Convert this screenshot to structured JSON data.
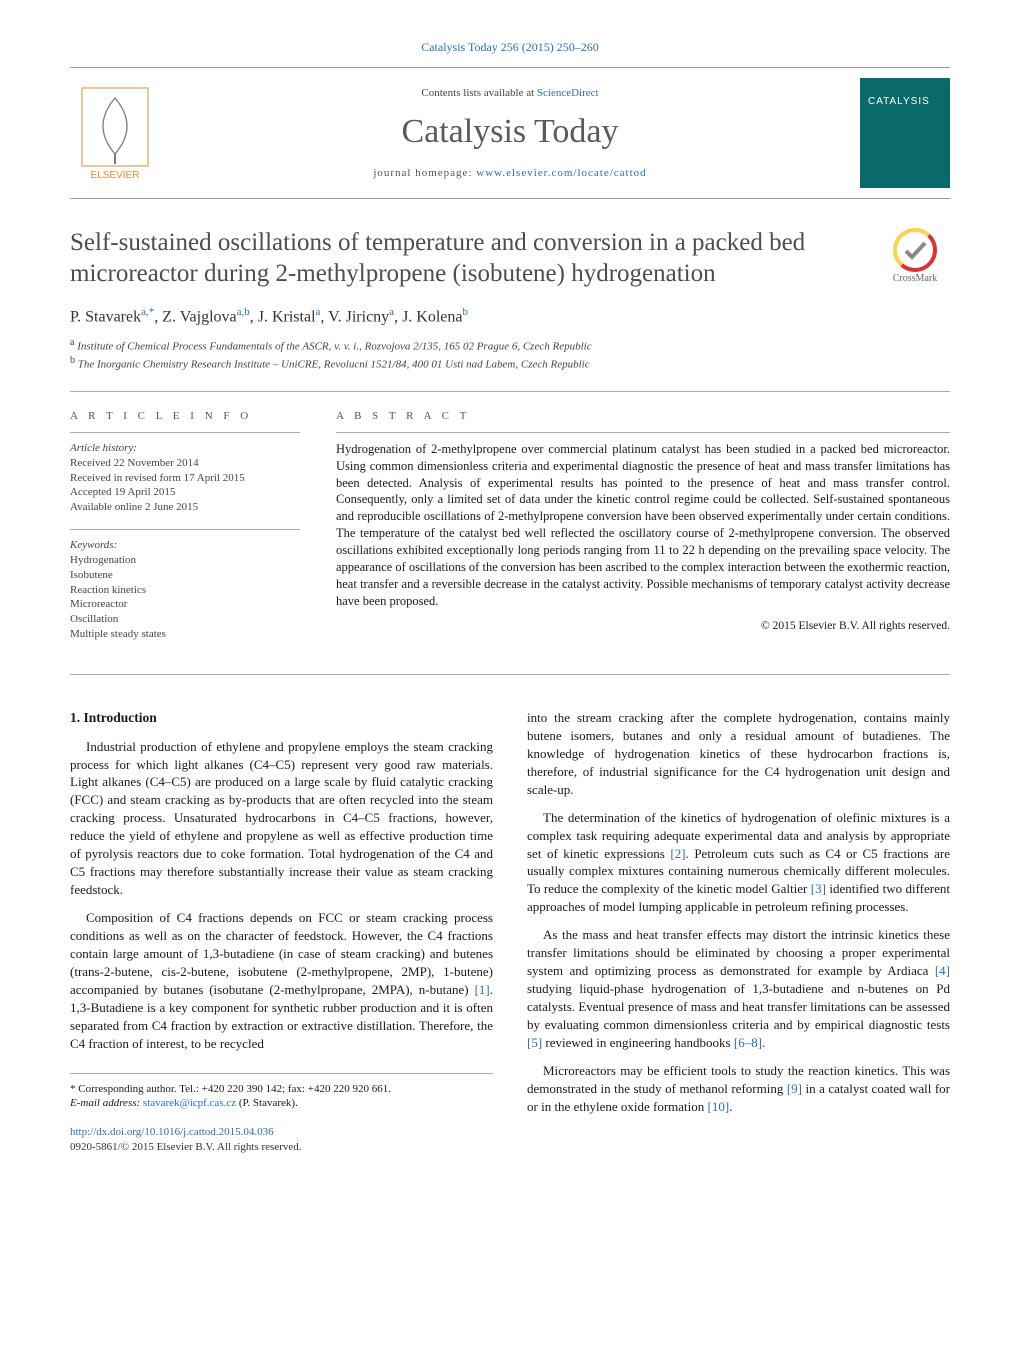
{
  "colors": {
    "link": "#2b6db0",
    "heading_gray": "#4d4d4d",
    "rule": "#aaaaaa",
    "cover_bg": "#0a6a6a",
    "crossmark_ring": "#e03030",
    "crossmark_check": "#888888",
    "elsevier_orange": "#e98b2c",
    "text": "#1a1a1a"
  },
  "fonts": {
    "body_family": "Times New Roman, Georgia, serif",
    "journal_title_size_pt": 26,
    "paper_title_size_pt": 19,
    "body_size_pt": 10,
    "small_size_pt": 8
  },
  "header": {
    "journal_ref_text": "Catalysis Today 256 (2015) 250–260",
    "sd_prefix": "Contents lists available at ",
    "sd_link": "ScienceDirect",
    "journal_title": "Catalysis Today",
    "homepage_label": "journal homepage: ",
    "homepage_url": "www.elsevier.com/locate/cattod",
    "publisher_logo_label": "ELSEVIER",
    "cover_brand": "CATALYSIS"
  },
  "crossmark": {
    "label": "CrossMark"
  },
  "paper": {
    "title": "Self-sustained oscillations of temperature and conversion in a packed bed microreactor during 2-methylpropene (isobutene) hydrogenation",
    "authors_html": "P. Stavarek<sup>a,*</sup>, Z. Vajglova<sup>a,b</sup>, J. Kristal<sup>a</sup>, V. Jiricny<sup>a</sup>, J. Kolena<sup>b</sup>",
    "affiliations": {
      "a": "Institute of Chemical Process Fundamentals of the ASCR, v. v. i., Rozvojova 2/135, 165 02 Prague 6, Czech Republic",
      "b": "The Inorganic Chemistry Research Institute – UniCRE, Revolucni 1521/84, 400 01 Usti nad Labem, Czech Republic"
    }
  },
  "article_info": {
    "section_label": "A R T I C L E   I N F O",
    "history_label": "Article history:",
    "received": "Received 22 November 2014",
    "revised": "Received in revised form 17 April 2015",
    "accepted": "Accepted 19 April 2015",
    "online": "Available online 2 June 2015",
    "keywords_label": "Keywords:",
    "keywords": [
      "Hydrogenation",
      "Isobutene",
      "Reaction kinetics",
      "Microreactor",
      "Oscillation",
      "Multiple steady states"
    ]
  },
  "abstract": {
    "section_label": "A B S T R A C T",
    "text": "Hydrogenation of 2-methylpropene over commercial platinum catalyst has been studied in a packed bed microreactor. Using common dimensionless criteria and experimental diagnostic the presence of heat and mass transfer limitations has been detected. Analysis of experimental results has pointed to the presence of heat and mass transfer control. Consequently, only a limited set of data under the kinetic control regime could be collected. Self-sustained spontaneous and reproducible oscillations of 2-methylpropene conversion have been observed experimentally under certain conditions. The temperature of the catalyst bed well reflected the oscillatory course of 2-methylpropene conversion. The observed oscillations exhibited exceptionally long periods ranging from 11 to 22 h depending on the prevailing space velocity. The appearance of oscillations of the conversion has been ascribed to the complex interaction between the exothermic reaction, heat transfer and a reversible decrease in the catalyst activity. Possible mechanisms of temporary catalyst activity decrease have been proposed.",
    "copyright": "© 2015 Elsevier B.V. All rights reserved."
  },
  "body": {
    "section_number": "1.",
    "section_title": "Introduction",
    "left_paras": [
      "Industrial production of ethylene and propylene employs the steam cracking process for which light alkanes (C4–C5) represent very good raw materials. Light alkanes (C4–C5) are produced on a large scale by fluid catalytic cracking (FCC) and steam cracking as by-products that are often recycled into the steam cracking process. Unsaturated hydrocarbons in C4–C5 fractions, however, reduce the yield of ethylene and propylene as well as effective production time of pyrolysis reactors due to coke formation. Total hydrogenation of the C4 and C5 fractions may therefore substantially increase their value as steam cracking feedstock.",
      "Composition of C4 fractions depends on FCC or steam cracking process conditions as well as on the character of feedstock. However, the C4 fractions contain large amount of 1,3-butadiene (in case of steam cracking) and butenes (trans-2-butene, cis-2-butene, isobutene (2-methylpropene, 2MP), 1-butene) accompanied by butanes (isobutane (2-methylpropane, 2MPA), n-butane) [1]. 1,3-Butadiene is a key component for synthetic rubber production and it is often separated from C4 fraction by extraction or extractive distillation. Therefore, the C4 fraction of interest, to be recycled"
    ],
    "right_paras": [
      "into the stream cracking after the complete hydrogenation, contains mainly butene isomers, butanes and only a residual amount of butadienes. The knowledge of hydrogenation kinetics of these hydrocarbon fractions is, therefore, of industrial significance for the C4 hydrogenation unit design and scale-up.",
      "The determination of the kinetics of hydrogenation of olefinic mixtures is a complex task requiring adequate experimental data and analysis by appropriate set of kinetic expressions [2]. Petroleum cuts such as C4 or C5 fractions are usually complex mixtures containing numerous chemically different molecules. To reduce the complexity of the kinetic model Galtier [3] identified two different approaches of model lumping applicable in petroleum refining processes.",
      "As the mass and heat transfer effects may distort the intrinsic kinetics these transfer limitations should be eliminated by choosing a proper experimental system and optimizing process as demonstrated for example by Ardiaca [4] studying liquid-phase hydrogenation of 1,3-butadiene and n-butenes on Pd catalysts. Eventual presence of mass and heat transfer limitations can be assessed by evaluating common dimensionless criteria and by empirical diagnostic tests [5] reviewed in engineering handbooks [6–8].",
      "Microreactors may be efficient tools to study the reaction kinetics. This was demonstrated in the study of methanol reforming [9] in a catalyst coated wall for or in the ethylene oxide formation [10]."
    ],
    "citation_markers": [
      "[1]",
      "[2]",
      "[3]",
      "[4]",
      "[5]",
      "[6–8]",
      "[9]",
      "[10]"
    ]
  },
  "footer": {
    "corr_marker": "*",
    "corr_text": "Corresponding author. Tel.: +420 220 390 142; fax: +420 220 920 661.",
    "email_label": "E-mail address: ",
    "email": "stavarek@icpf.cas.cz",
    "email_suffix": " (P. Stavarek).",
    "doi_url": "http://dx.doi.org/10.1016/j.cattod.2015.04.036",
    "issn_line": "0920-5861/© 2015 Elsevier B.V. All rights reserved."
  }
}
